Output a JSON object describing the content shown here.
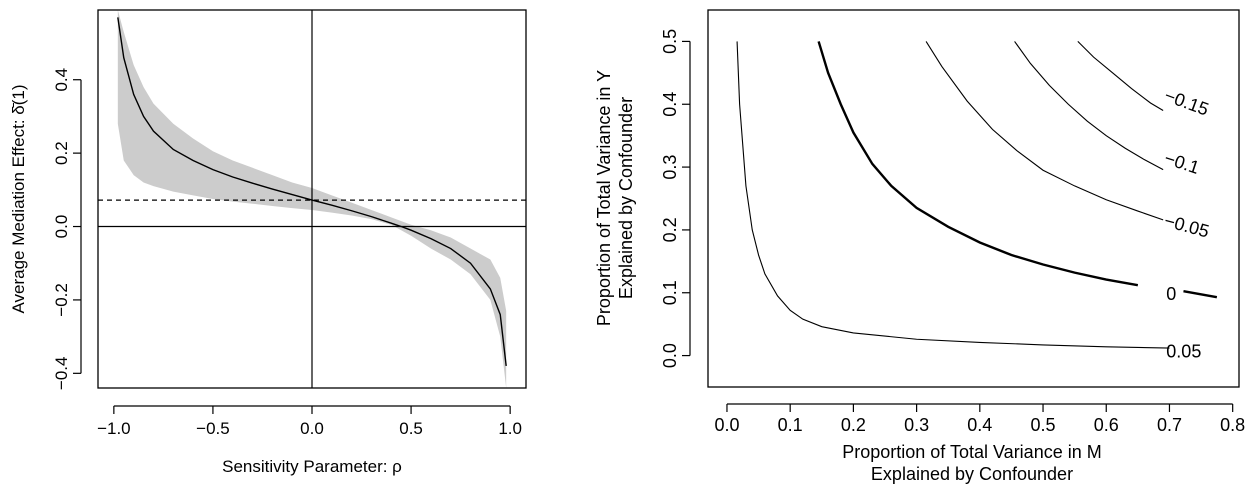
{
  "chart_data": [
    {
      "type": "area",
      "xlabel": "Sensitivity Parameter: ρ",
      "ylabel": "Average Mediation Effect: δ̄(1)",
      "xlim": [
        -1.08,
        1.08
      ],
      "ylim": [
        -0.44,
        0.59
      ],
      "xticks": [
        -1.0,
        -0.5,
        0.0,
        0.5,
        1.0
      ],
      "xtick_labels": [
        "−1.0",
        "−0.5",
        "0.0",
        "0.5",
        "1.0"
      ],
      "yticks": [
        -0.4,
        -0.2,
        0.0,
        0.2,
        0.4
      ],
      "ytick_labels": [
        "−0.4",
        "−0.2",
        "0.0",
        "0.2",
        "0.4"
      ],
      "grid": false,
      "reference_lines": {
        "dashed_y": 0.072,
        "solid_y": 0.0,
        "solid_x": 0.0
      },
      "series": [
        {
          "kind": "line",
          "x": [
            -0.98,
            -0.95,
            -0.9,
            -0.85,
            -0.8,
            -0.7,
            -0.6,
            -0.5,
            -0.4,
            -0.3,
            -0.2,
            -0.1,
            0.0,
            0.1,
            0.2,
            0.3,
            0.4,
            0.45,
            0.5,
            0.6,
            0.7,
            0.8,
            0.9,
            0.95,
            0.98
          ],
          "y": [
            0.57,
            0.46,
            0.36,
            0.3,
            0.26,
            0.21,
            0.18,
            0.155,
            0.135,
            0.118,
            0.102,
            0.087,
            0.072,
            0.058,
            0.043,
            0.027,
            0.009,
            0.0,
            -0.01,
            -0.033,
            -0.06,
            -0.1,
            -0.17,
            -0.24,
            -0.38
          ]
        },
        {
          "kind": "band",
          "x": [
            -0.98,
            -0.95,
            -0.9,
            -0.85,
            -0.8,
            -0.7,
            -0.6,
            -0.5,
            -0.4,
            -0.3,
            -0.2,
            -0.1,
            0.0,
            0.1,
            0.2,
            0.3,
            0.4,
            0.5,
            0.6,
            0.7,
            0.8,
            0.9,
            0.95,
            0.98
          ],
          "lower": [
            0.28,
            0.18,
            0.14,
            0.12,
            0.11,
            0.095,
            0.085,
            0.075,
            0.068,
            0.062,
            0.056,
            0.05,
            0.045,
            0.038,
            0.03,
            0.02,
            0.005,
            -0.025,
            -0.06,
            -0.09,
            -0.13,
            -0.2,
            -0.3,
            -0.44
          ],
          "upper": [
            0.59,
            0.53,
            0.44,
            0.38,
            0.335,
            0.28,
            0.24,
            0.205,
            0.18,
            0.16,
            0.14,
            0.12,
            0.105,
            0.085,
            0.065,
            0.045,
            0.025,
            0.005,
            -0.01,
            -0.03,
            -0.06,
            -0.09,
            -0.14,
            -0.23
          ]
        }
      ]
    },
    {
      "type": "line",
      "xlabel": "Proportion of Total Variance in M\nExplained by Confounder",
      "ylabel": "Proportion of Total Variance in Y\nExplained by Confounder",
      "xlim": [
        -0.03,
        0.81
      ],
      "ylim": [
        -0.05,
        0.55
      ],
      "xticks": [
        0.0,
        0.1,
        0.2,
        0.3,
        0.4,
        0.5,
        0.6,
        0.7,
        0.8
      ],
      "xtick_labels": [
        "0.0",
        "0.1",
        "0.2",
        "0.3",
        "0.4",
        "0.5",
        "0.6",
        "0.7",
        "0.8"
      ],
      "yticks": [
        0.0,
        0.1,
        0.2,
        0.3,
        0.4,
        0.5
      ],
      "ytick_labels": [
        "0.0",
        "0.1",
        "0.2",
        "0.3",
        "0.4",
        "0.5"
      ],
      "grid": false,
      "series": [
        {
          "label": "0.05",
          "x": [
            0.016,
            0.02,
            0.03,
            0.04,
            0.05,
            0.06,
            0.08,
            0.1,
            0.12,
            0.15,
            0.2,
            0.3,
            0.4,
            0.5,
            0.6,
            0.7
          ],
          "y": [
            0.5,
            0.4,
            0.27,
            0.2,
            0.16,
            0.13,
            0.095,
            0.072,
            0.058,
            0.046,
            0.036,
            0.026,
            0.021,
            0.017,
            0.014,
            0.012
          ]
        },
        {
          "label": "0",
          "x": [
            0.145,
            0.16,
            0.18,
            0.2,
            0.23,
            0.26,
            0.3,
            0.35,
            0.4,
            0.45,
            0.5,
            0.55,
            0.6,
            0.65,
            0.7,
            0.775
          ],
          "y": [
            0.5,
            0.45,
            0.4,
            0.355,
            0.305,
            0.27,
            0.235,
            0.205,
            0.18,
            0.16,
            0.145,
            0.132,
            0.121,
            0.112,
            0.104,
            0.093
          ]
        },
        {
          "label": "−0.05",
          "x": [
            0.315,
            0.34,
            0.38,
            0.42,
            0.46,
            0.5,
            0.55,
            0.6,
            0.65,
            0.69
          ],
          "y": [
            0.5,
            0.46,
            0.405,
            0.36,
            0.325,
            0.295,
            0.27,
            0.248,
            0.23,
            0.216
          ]
        },
        {
          "label": "−0.1",
          "x": [
            0.455,
            0.48,
            0.51,
            0.54,
            0.57,
            0.6,
            0.63,
            0.66,
            0.69
          ],
          "y": [
            0.5,
            0.465,
            0.43,
            0.4,
            0.373,
            0.35,
            0.33,
            0.312,
            0.296
          ]
        },
        {
          "label": "−0.15",
          "x": [
            0.555,
            0.58,
            0.61,
            0.64,
            0.67,
            0.69
          ],
          "y": [
            0.5,
            0.475,
            0.45,
            0.425,
            0.402,
            0.39
          ]
        }
      ]
    }
  ]
}
